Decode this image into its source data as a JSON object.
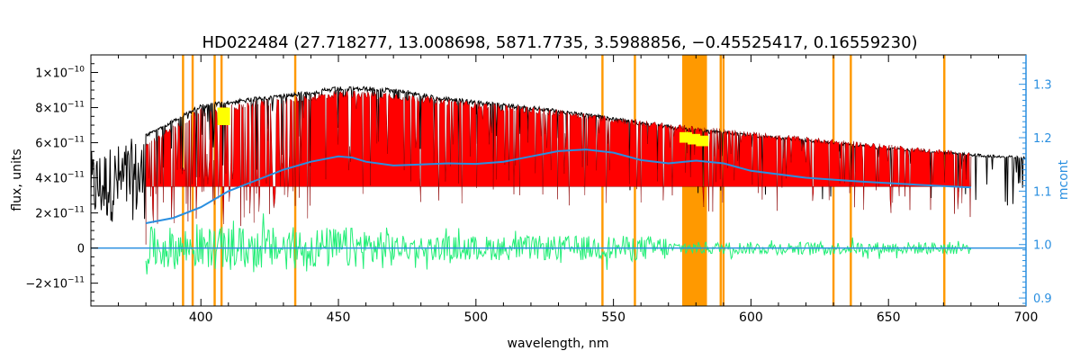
{
  "chart_data": {
    "type": "line",
    "title": "HD022484    (27.718277, 13.008698, 5871.7735, 3.5988856, −0.45525417, 0.16559230)",
    "xlabel": "wavelength, nm",
    "ylabel": "flux, units",
    "ylabel_right": "mcont",
    "xlim": [
      360,
      700
    ],
    "ylim": [
      -3.3e-11,
      1.1e-10
    ],
    "ylim_right": [
      0.885,
      1.355
    ],
    "x_ticks": [
      "400",
      "450",
      "500",
      "550",
      "600",
      "650",
      "700"
    ],
    "y_ticks": [
      {
        "value": 1e-10,
        "mant": "1×10",
        "exp": "−10"
      },
      {
        "value": 8e-11,
        "mant": "8×10",
        "exp": "−11"
      },
      {
        "value": 6e-11,
        "mant": "6×10",
        "exp": "−11"
      },
      {
        "value": 4e-11,
        "mant": "4×10",
        "exp": "−11"
      },
      {
        "value": 2e-11,
        "mant": "2×10",
        "exp": "−11"
      },
      {
        "value": 0,
        "mant": "0",
        "exp": ""
      },
      {
        "value": -2e-11,
        "mant": "−2×10",
        "exp": "−11"
      }
    ],
    "y_ticks_right": [
      "0.9",
      "1.0",
      "1.1",
      "1.2",
      "1.3"
    ],
    "colors": {
      "observed": "#000000",
      "model": "#ff0000",
      "residual": "#22ee77",
      "continuum": "#2a8fe0",
      "masked": "#ff9900",
      "flagged": "#ffff00",
      "axis_right": "#2a8fe0"
    },
    "series": [
      {
        "color": "observed",
        "x": [
          360,
          380,
          400,
          420,
          440,
          450,
          460,
          470,
          480,
          486,
          490,
          500,
          520,
          540,
          560,
          580,
          600,
          620,
          640,
          660,
          680,
          700
        ],
        "y": [
          5.5e-11,
          6.5e-11,
          8.2e-11,
          8.6e-11,
          9e-11,
          9.2e-11,
          9.2e-11,
          9.1e-11,
          8.9e-11,
          8.6e-11,
          8.6e-11,
          8.4e-11,
          8.1e-11,
          7.7e-11,
          7.2e-11,
          6.8e-11,
          6.5e-11,
          6.2e-11,
          5.9e-11,
          5.6e-11,
          5.4e-11,
          5.2e-11
        ]
      },
      {
        "color": "model",
        "x": [
          380,
          400,
          420,
          440,
          450,
          470,
          490,
          510,
          530,
          550,
          570,
          590,
          610,
          630,
          650,
          670,
          680
        ],
        "y": [
          6e-11,
          8e-11,
          8.4e-11,
          8.8e-11,
          9e-11,
          8.9e-11,
          8.5e-11,
          8.2e-11,
          7.9e-11,
          7.5e-11,
          7.1e-11,
          6.8e-11,
          6.5e-11,
          6.2e-11,
          5.9e-11,
          5.6e-11,
          5.5e-11
        ]
      },
      {
        "color": "continuum",
        "x": [
          380,
          390,
          400,
          410,
          420,
          430,
          440,
          450,
          455,
          460,
          470,
          480,
          490,
          500,
          510,
          520,
          530,
          540,
          550,
          560,
          570,
          580,
          590,
          600,
          620,
          640,
          660,
          680
        ],
        "y_right": [
          1.04,
          1.05,
          1.07,
          1.1,
          1.12,
          1.14,
          1.155,
          1.165,
          1.163,
          1.155,
          1.148,
          1.15,
          1.152,
          1.151,
          1.155,
          1.165,
          1.175,
          1.178,
          1.172,
          1.158,
          1.152,
          1.157,
          1.152,
          1.138,
          1.125,
          1.118,
          1.112,
          1.107
        ]
      }
    ],
    "masked_regions_nm": [
      [
        393.1,
        393.9
      ],
      [
        396.6,
        397.4
      ],
      [
        404.6,
        405.4
      ],
      [
        407.1,
        407.9
      ],
      [
        433.9,
        434.7
      ],
      [
        545.6,
        546.4
      ],
      [
        557.4,
        558.2
      ],
      [
        575.0,
        584.0
      ],
      [
        588.6,
        589.4
      ],
      [
        589.6,
        590.4
      ],
      [
        629.6,
        630.4
      ],
      [
        635.9,
        636.7
      ],
      [
        669.9,
        670.7
      ]
    ]
  }
}
